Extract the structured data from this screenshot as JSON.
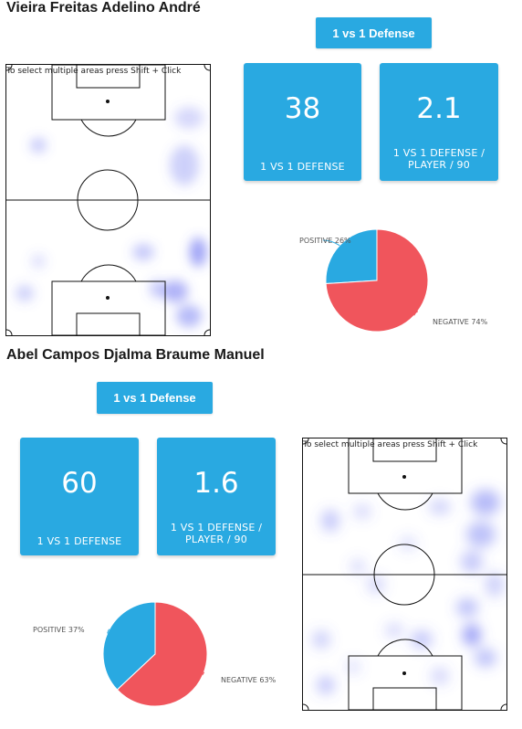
{
  "colors": {
    "accent": "#29a9e1",
    "negative": "#f0555c",
    "positive": "#29a9e1",
    "heat": "#5b63f0"
  },
  "players": [
    {
      "name": "Vieira Freitas Adelino André",
      "tag_button": "1 vs 1 Defense",
      "kpis": [
        {
          "value": "38",
          "label": "1 VS 1 DEFENSE"
        },
        {
          "value": "2.1",
          "label": "1 VS 1 DEFENSE / PLAYER / 90"
        }
      ],
      "pitch_hint": "To select multiple areas press Shift + Click",
      "pie": {
        "positive_label": "POSITIVE 26%",
        "negative_label": "NEGATIVE 74%"
      }
    },
    {
      "name": "Abel Campos Djalma Braume Manuel",
      "tag_button": "1 vs 1 Defense",
      "kpis": [
        {
          "value": "60",
          "label": "1 VS 1 DEFENSE"
        },
        {
          "value": "1.6",
          "label": "1 VS 1 DEFENSE / PLAYER / 90"
        }
      ],
      "pitch_hint": "To select multiple areas press Shift + Click",
      "pie": {
        "positive_label": "POSITIVE 37%",
        "negative_label": "NEGATIVE 63%"
      }
    }
  ],
  "chart_data": [
    {
      "type": "pie",
      "categories": [
        "POSITIVE",
        "NEGATIVE"
      ],
      "values": [
        26,
        74
      ]
    },
    {
      "type": "pie",
      "categories": [
        "POSITIVE",
        "NEGATIVE"
      ],
      "values": [
        37,
        63
      ]
    }
  ]
}
